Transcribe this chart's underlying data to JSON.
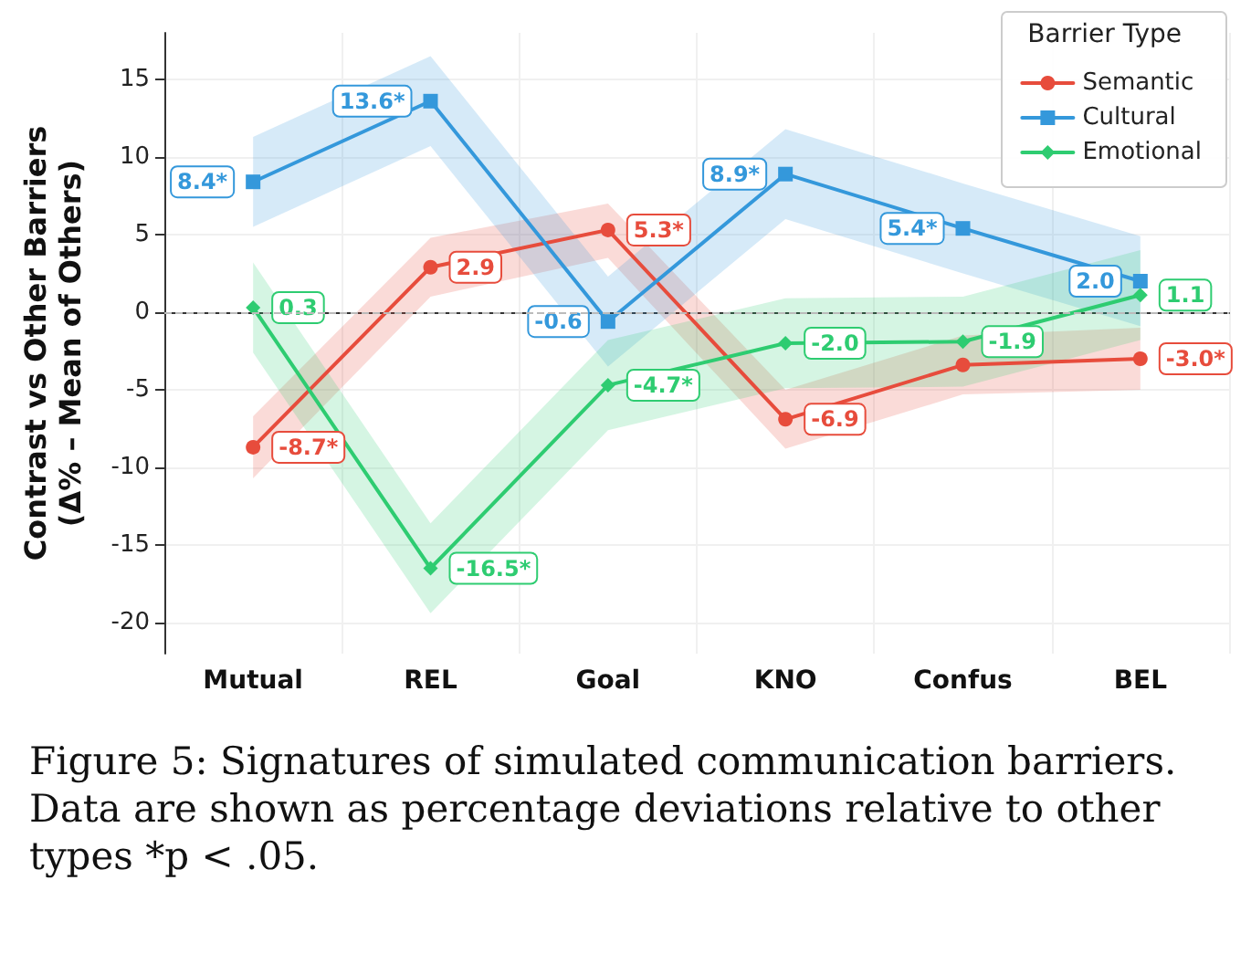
{
  "chart_data": {
    "type": "line",
    "ylabel": "Contrast vs Other Barriers\n(Δ% – Mean of Others)",
    "legend_title": "Barrier Type",
    "legend": "top right",
    "grid": true,
    "line_style": "solid",
    "categories": [
      "Mutual",
      "REL",
      "Goal",
      "KNO",
      "Confus",
      "BEL"
    ],
    "ylim": [
      -22,
      18
    ],
    "yticks": [
      -20,
      -15,
      -10,
      -5,
      0,
      5,
      10,
      15
    ],
    "series": [
      {
        "name": "Semantic",
        "color": "#e74c3c",
        "marker": "circle",
        "values": [
          -8.7,
          2.9,
          5.3,
          -6.9,
          -3.4,
          -3.0
        ],
        "value_labels": [
          "-8.7*",
          "2.9",
          "5.3*",
          "-6.9",
          null,
          "-3.0*"
        ],
        "lower": [
          -10.7,
          1.0,
          3.5,
          -8.8,
          -5.3,
          -5.0
        ],
        "upper": [
          -6.7,
          4.8,
          7.0,
          -5.0,
          -1.5,
          -1.0
        ]
      },
      {
        "name": "Cultural",
        "color": "#3498db",
        "marker": "square",
        "values": [
          8.4,
          13.6,
          -0.6,
          8.9,
          5.4,
          2.0
        ],
        "value_labels": [
          "8.4*",
          "13.6*",
          "-0.6",
          "8.9*",
          "5.4*",
          "2.0"
        ],
        "lower": [
          5.5,
          10.7,
          -3.5,
          6.0,
          2.5,
          -0.9
        ],
        "upper": [
          11.3,
          16.5,
          2.3,
          11.8,
          8.3,
          4.9
        ]
      },
      {
        "name": "Emotional",
        "color": "#2ecc71",
        "marker": "diamond",
        "values": [
          0.3,
          -16.5,
          -4.7,
          -2.0,
          -1.9,
          1.1
        ],
        "value_labels": [
          "0.3",
          "-16.5*",
          "-4.7*",
          "-2.0",
          "-1.9",
          "1.1"
        ],
        "lower": [
          -2.6,
          -19.4,
          -7.6,
          -4.9,
          -4.8,
          -1.8
        ],
        "upper": [
          3.2,
          -13.6,
          -1.8,
          0.9,
          1.0,
          4.0
        ]
      }
    ],
    "ref_lines": [
      {
        "axis": "y",
        "value": 0,
        "color": "#bbbbbb",
        "line_style": "dashed"
      }
    ],
    "annotations": [
      "Figure 5: Signatures of simulated communication barriers. Data are shown as percentage deviations relative to other types *p < .05."
    ]
  }
}
